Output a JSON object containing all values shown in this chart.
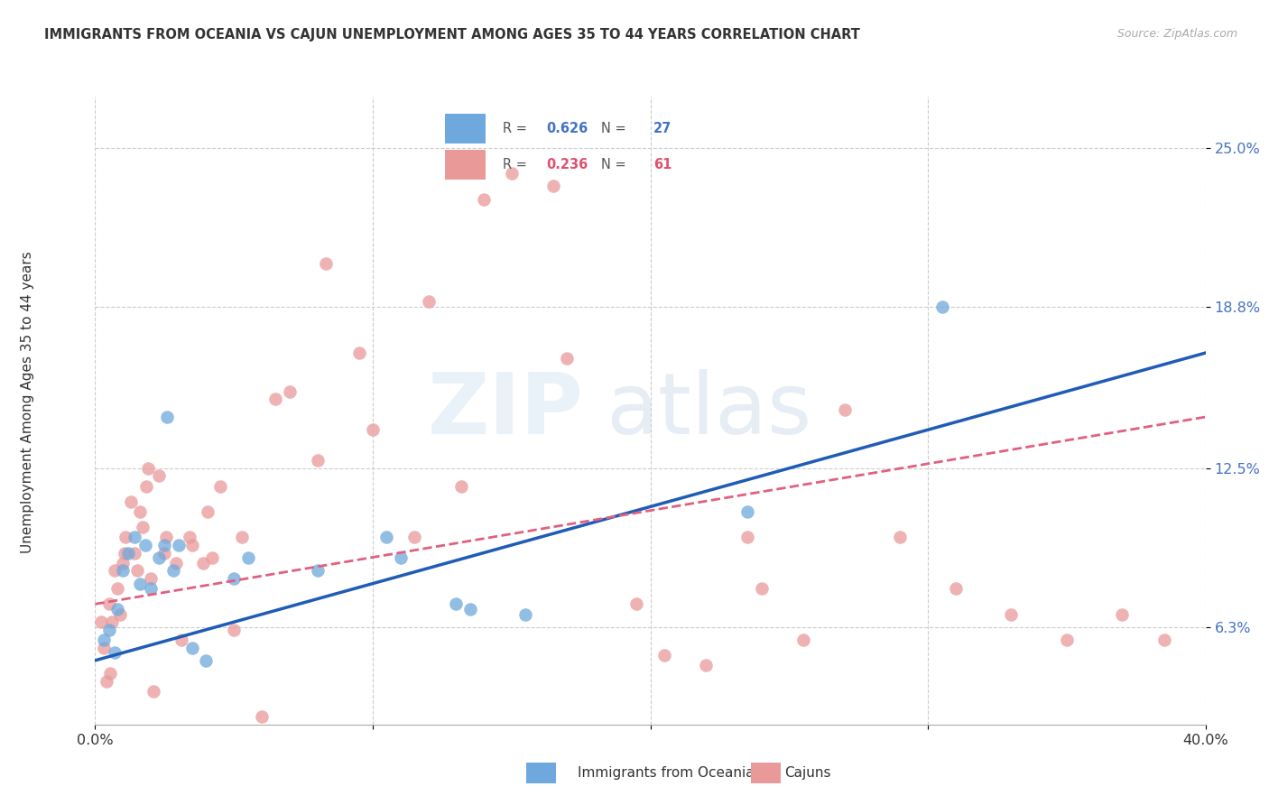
{
  "title": "IMMIGRANTS FROM OCEANIA VS CAJUN UNEMPLOYMENT AMONG AGES 35 TO 44 YEARS CORRELATION CHART",
  "source": "Source: ZipAtlas.com",
  "ylabel": "Unemployment Among Ages 35 to 44 years",
  "ytick_vals": [
    6.3,
    12.5,
    18.8,
    25.0
  ],
  "ytick_labels": [
    "6.3%",
    "12.5%",
    "18.8%",
    "25.0%"
  ],
  "xtick_vals": [
    0.0,
    10.0,
    20.0,
    30.0,
    40.0
  ],
  "xtick_labels": [
    "0.0%",
    "",
    "",
    "",
    "40.0%"
  ],
  "xlim": [
    0.0,
    40.0
  ],
  "ylim": [
    2.5,
    27.0
  ],
  "legend1_label": "Immigrants from Oceania",
  "legend2_label": "Cajuns",
  "R1": "0.626",
  "N1": "27",
  "R2": "0.236",
  "N2": "61",
  "blue_color": "#6fa8dc",
  "pink_color": "#ea9999",
  "blue_line_color": "#1f5cb5",
  "pink_line_color": "#e06080",
  "watermark_zip": "ZIP",
  "watermark_atlas": "atlas",
  "blue_line_start_y": 5.0,
  "blue_line_end_y": 17.0,
  "pink_line_start_y": 7.2,
  "pink_line_end_y": 14.5,
  "blue_scatter_x": [
    0.3,
    0.5,
    0.7,
    0.8,
    1.0,
    1.2,
    1.4,
    1.6,
    1.8,
    2.0,
    2.3,
    2.5,
    2.8,
    3.0,
    3.5,
    4.0,
    5.0,
    5.5,
    8.0,
    10.5,
    11.0,
    13.0,
    13.5,
    15.5,
    23.5,
    30.5,
    2.6
  ],
  "blue_scatter_y": [
    5.8,
    6.2,
    5.3,
    7.0,
    8.5,
    9.2,
    9.8,
    8.0,
    9.5,
    7.8,
    9.0,
    9.5,
    8.5,
    9.5,
    5.5,
    5.0,
    8.2,
    9.0,
    8.5,
    9.8,
    9.0,
    7.2,
    7.0,
    6.8,
    10.8,
    18.8,
    14.5
  ],
  "pink_scatter_x": [
    0.2,
    0.3,
    0.4,
    0.5,
    0.55,
    0.6,
    0.7,
    0.8,
    0.9,
    1.0,
    1.05,
    1.1,
    1.3,
    1.4,
    1.5,
    1.6,
    1.7,
    1.85,
    2.0,
    2.1,
    2.3,
    2.5,
    2.55,
    2.9,
    3.1,
    3.4,
    3.9,
    4.05,
    4.5,
    5.0,
    5.3,
    6.0,
    6.5,
    7.0,
    8.0,
    8.3,
    9.5,
    10.0,
    11.5,
    12.0,
    13.2,
    14.0,
    15.0,
    16.5,
    17.0,
    19.5,
    20.5,
    22.0,
    23.5,
    24.0,
    25.5,
    27.0,
    29.0,
    31.0,
    33.0,
    35.0,
    37.0,
    38.5,
    3.5,
    4.2,
    1.9
  ],
  "pink_scatter_y": [
    6.5,
    5.5,
    4.2,
    7.2,
    4.5,
    6.5,
    8.5,
    7.8,
    6.8,
    8.8,
    9.2,
    9.8,
    11.2,
    9.2,
    8.5,
    10.8,
    10.2,
    11.8,
    8.2,
    3.8,
    12.2,
    9.2,
    9.8,
    8.8,
    5.8,
    9.8,
    8.8,
    10.8,
    11.8,
    6.2,
    9.8,
    2.8,
    15.2,
    15.5,
    12.8,
    20.5,
    17.0,
    14.0,
    9.8,
    19.0,
    11.8,
    23.0,
    24.0,
    23.5,
    16.8,
    7.2,
    5.2,
    4.8,
    9.8,
    7.8,
    5.8,
    14.8,
    9.8,
    7.8,
    6.8,
    5.8,
    6.8,
    5.8,
    9.5,
    9.0,
    12.5
  ]
}
